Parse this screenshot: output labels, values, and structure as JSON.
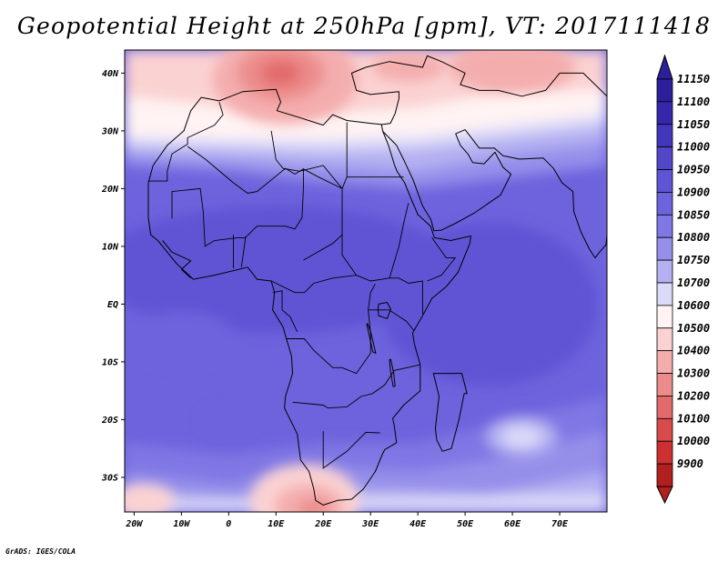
{
  "title": "Geopotential Height at 250hPa [gpm], VT: 2017111418",
  "footer": "GrADS: IGES/COLA",
  "map": {
    "lon_range": [
      -22,
      80
    ],
    "lat_range": [
      -36,
      44
    ],
    "lat_ticks": [
      {
        "value": 40,
        "label": "40N"
      },
      {
        "value": 30,
        "label": "30N"
      },
      {
        "value": 20,
        "label": "20N"
      },
      {
        "value": 10,
        "label": "10N"
      },
      {
        "value": 0,
        "label": "EQ"
      },
      {
        "value": -10,
        "label": "10S"
      },
      {
        "value": -20,
        "label": "20S"
      },
      {
        "value": -30,
        "label": "30S"
      }
    ],
    "lon_ticks": [
      {
        "value": -20,
        "label": "20W"
      },
      {
        "value": -10,
        "label": "10W"
      },
      {
        "value": 0,
        "label": "0"
      },
      {
        "value": 10,
        "label": "10E"
      },
      {
        "value": 20,
        "label": "20E"
      },
      {
        "value": 30,
        "label": "30E"
      },
      {
        "value": 40,
        "label": "40E"
      },
      {
        "value": 50,
        "label": "50E"
      },
      {
        "value": 60,
        "label": "60E"
      },
      {
        "value": 70,
        "label": "70E"
      }
    ]
  },
  "colorbar": {
    "levels": [
      "11150",
      "11100",
      "11050",
      "11000",
      "10950",
      "10900",
      "10850",
      "10800",
      "10750",
      "10700",
      "10600",
      "10500",
      "10400",
      "10300",
      "10200",
      "10100",
      "10000",
      "9900"
    ],
    "colors": [
      "#2d1e9c",
      "#3427ac",
      "#4236bd",
      "#5247c9",
      "#5f55d4",
      "#6d63dd",
      "#7f77e4",
      "#958fea",
      "#b4b0f1",
      "#dcdaf9",
      "#fff3f3",
      "#fbd2d2",
      "#f4adad",
      "#ec8b8b",
      "#e26a6a",
      "#d84b4b",
      "#cc3030",
      "#b11f1f"
    ]
  },
  "chart_data": {
    "type": "heatmap",
    "title": "Geopotential Height at 250hPa [gpm], VT: 2017111418",
    "variable": "Geopotential Height at 250hPa",
    "units": "gpm",
    "valid_time": "2017111418",
    "x_range_deg": [
      -22,
      80
    ],
    "y_range_deg": [
      -36,
      44
    ],
    "x_ticks": [
      "20W",
      "10W",
      "0",
      "10E",
      "20E",
      "30E",
      "40E",
      "50E",
      "60E",
      "70E"
    ],
    "y_ticks": [
      "40N",
      "30N",
      "20N",
      "10N",
      "EQ",
      "10S",
      "20S",
      "30S"
    ],
    "colorbar_levels": [
      9900,
      10000,
      10100,
      10200,
      10300,
      10400,
      10500,
      10600,
      10700,
      10750,
      10800,
      10850,
      10900,
      10950,
      11000,
      11050,
      11100,
      11150
    ],
    "features": [
      {
        "name": "low over Mediterranean / Tunisia",
        "lon": 12,
        "lat": 39,
        "value_approx": 10450
      },
      {
        "name": "low over southern Africa",
        "lon": 17,
        "lat": -34,
        "value_approx": 10500
      },
      {
        "name": "tropical band",
        "lat_range": [
          -20,
          20
        ],
        "value_approx": 10950
      }
    ]
  }
}
